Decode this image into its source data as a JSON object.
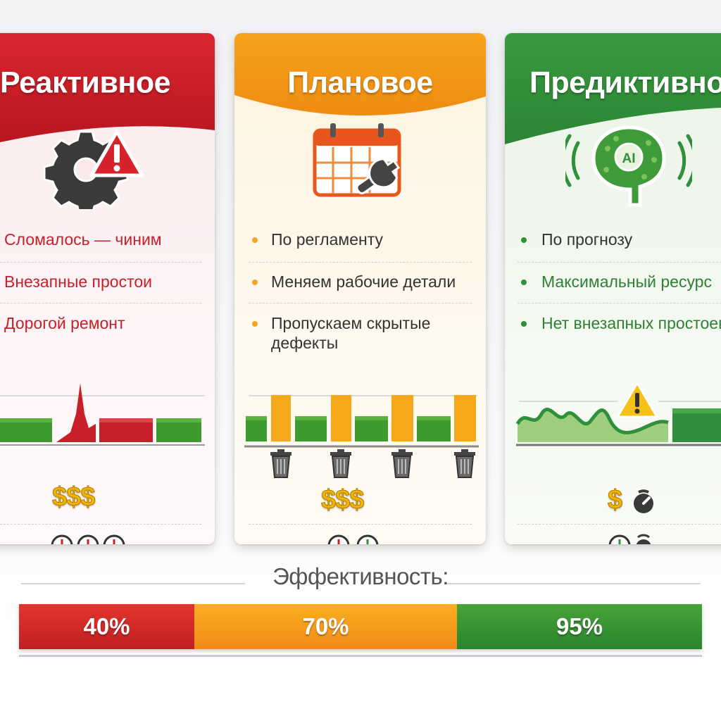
{
  "colors": {
    "reactive": "#c8202a",
    "planned": "#f29a1a",
    "predictive": "#2f8f3a",
    "coin": "#f0b400"
  },
  "cards": {
    "reactive": {
      "title": "Реактивное",
      "icon": "gear-warning-icon",
      "bullets": [
        "Сломалось — чиним",
        "Внезапные простои",
        "Дорогой ремонт"
      ],
      "cost": "$$$",
      "timers": 3
    },
    "planned": {
      "title": "Плановое",
      "icon": "calendar-wrench-icon",
      "bullets": [
        "По регламенту",
        "Меняем рабочие детали",
        "Пропускаем скрытые",
        "дефекты"
      ],
      "cost": "$$$",
      "timers": 2
    },
    "predictive": {
      "title": "Предиктивное",
      "icon": "ai-brain-icon",
      "bullets": [
        "По прогнозу",
        "Максимальный ресурс",
        "Нет внезапных простоев"
      ],
      "cost": "$",
      "timers": 1
    }
  },
  "efficiency": {
    "title": "Эффективность:",
    "reactive": "40%",
    "planned": "70%",
    "predictive": "95%"
  }
}
